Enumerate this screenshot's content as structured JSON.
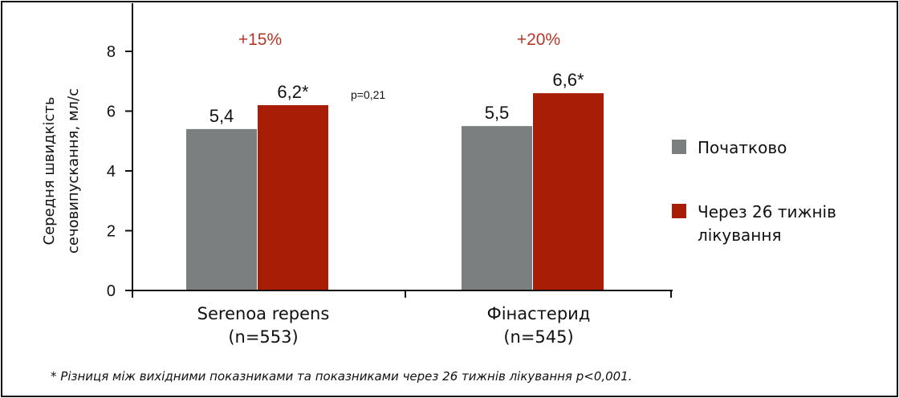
{
  "chart_data": {
    "type": "bar",
    "title": "",
    "ylabel_lines": [
      "Середня швидкість",
      "сечовипускання, мл/с"
    ],
    "xlabel": "",
    "ylim": [
      0,
      8
    ],
    "yticks": [
      "0",
      "2",
      "4",
      "6",
      "8"
    ],
    "grid": false,
    "categories": [
      {
        "name": "Serenoa repens",
        "n": "(n=553)"
      },
      {
        "name": "Фінастерид",
        "n": "(n=545)"
      }
    ],
    "series": [
      {
        "name": "Початково",
        "color": "#7c7f7f",
        "values": [
          5.4,
          5.5
        ],
        "labels": [
          "5,4",
          "5,5"
        ]
      },
      {
        "name": "Через 26 тижнів лікування",
        "legend_lines": [
          "Через 26 тижнів",
          "лікування"
        ],
        "color": "#a81d06",
        "values": [
          6.2,
          6.6
        ],
        "labels": [
          "6,2*",
          "6,6*"
        ]
      }
    ],
    "annotations": {
      "percent_changes": [
        "+15%",
        "+20%"
      ],
      "percent_color": "#b3382a",
      "pvalue": "p=0,21"
    },
    "legend_position": "right",
    "footnote": "* Різниця між вихідними показниками та показниками через 26 тижнів лікування p<0,001."
  }
}
